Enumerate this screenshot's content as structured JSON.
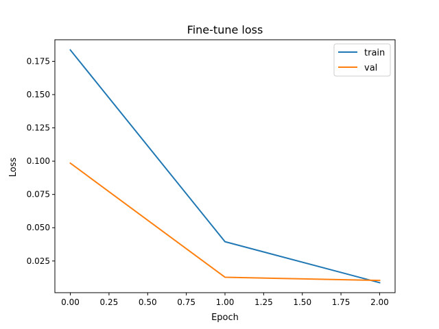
{
  "chart_data": {
    "type": "line",
    "title": "Fine-tune loss",
    "xlabel": "Epoch",
    "ylabel": "Loss",
    "x": [
      0,
      1,
      2
    ],
    "series": [
      {
        "name": "train",
        "values": [
          0.1835,
          0.0395,
          0.0087
        ],
        "color": "#1f77b4"
      },
      {
        "name": "val",
        "values": [
          0.0985,
          0.0128,
          0.0104
        ],
        "color": "#ff7f0e"
      }
    ],
    "xlim": [
      -0.1,
      2.1
    ],
    "ylim": [
      0.0012,
      0.1912
    ],
    "xticks": [
      {
        "value": 0.0,
        "label": "0.00"
      },
      {
        "value": 0.25,
        "label": "0.25"
      },
      {
        "value": 0.5,
        "label": "0.50"
      },
      {
        "value": 0.75,
        "label": "0.75"
      },
      {
        "value": 1.0,
        "label": "1.00"
      },
      {
        "value": 1.25,
        "label": "1.25"
      },
      {
        "value": 1.5,
        "label": "1.50"
      },
      {
        "value": 1.75,
        "label": "1.75"
      },
      {
        "value": 2.0,
        "label": "2.00"
      }
    ],
    "yticks": [
      {
        "value": 0.025,
        "label": "0.025"
      },
      {
        "value": 0.05,
        "label": "0.050"
      },
      {
        "value": 0.075,
        "label": "0.075"
      },
      {
        "value": 0.1,
        "label": "0.100"
      },
      {
        "value": 0.125,
        "label": "0.125"
      },
      {
        "value": 0.15,
        "label": "0.150"
      },
      {
        "value": 0.175,
        "label": "0.175"
      }
    ],
    "grid": false,
    "legend": "top-right"
  }
}
